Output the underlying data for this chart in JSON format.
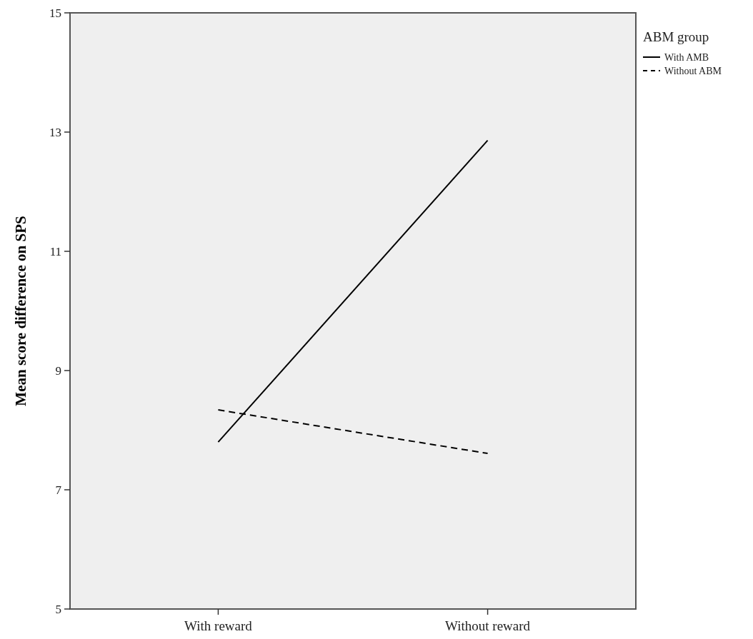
{
  "chart_data": {
    "type": "line",
    "ylabel": "Mean score difference on SPS",
    "legend_title": "ABM group",
    "categories": [
      "With reward",
      "Without reward"
    ],
    "series": [
      {
        "name": "With AMB",
        "color": "#000000",
        "values": [
          7.8,
          12.86
        ],
        "line_style": "solid"
      },
      {
        "name": "Without ABM",
        "color": "#000000",
        "values": [
          8.34,
          7.61
        ],
        "line_style": "dashed"
      }
    ],
    "ylim": [
      5,
      15
    ],
    "yticks": [
      5,
      7,
      9,
      11,
      13,
      15
    ],
    "grid": false,
    "legend": "top right",
    "marker": "none"
  }
}
